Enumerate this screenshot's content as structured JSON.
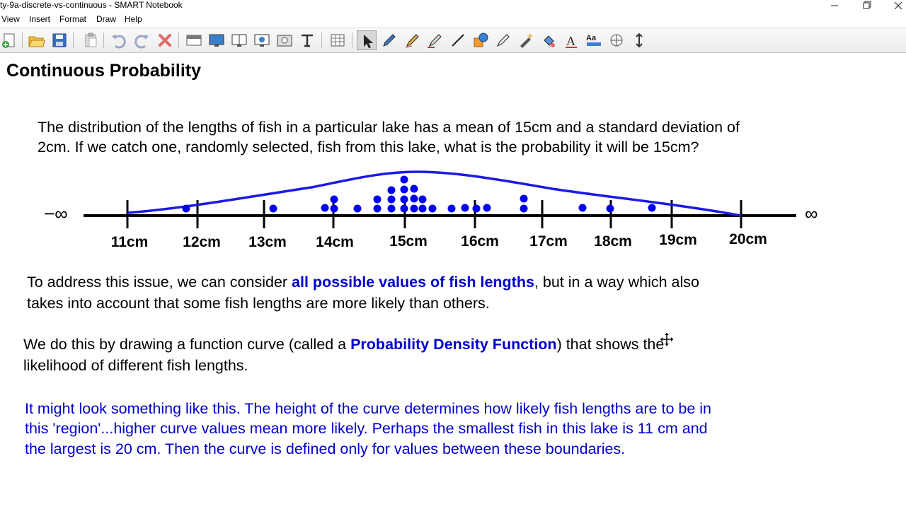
{
  "window": {
    "title": "ty-9a-discrete-vs-continuous - SMART Notebook",
    "minimize_icon": "minimize-icon",
    "restore_icon": "restore-icon",
    "close_icon": "close-icon"
  },
  "menu": [
    "View",
    "Insert",
    "Format",
    "Draw",
    "Help"
  ],
  "toolbar": {
    "buttons": [
      "new-page-icon",
      "open-folder-icon",
      "save-icon",
      "paste-icon",
      "undo-icon",
      "redo-icon",
      "delete-icon",
      "screen-shade-icon",
      "full-screen-icon",
      "dual-page-icon",
      "capture-icon",
      "insert-media-icon",
      "text-tool-icon",
      "table-icon",
      "select-arrow-icon",
      "pen-icon",
      "creative-pen-icon",
      "highlighter-icon",
      "eraser-icon",
      "line-icon",
      "shapes-icon",
      "magic-pen-icon",
      "magic-wand-icon",
      "fill-icon",
      "text-icon",
      "properties-icon",
      "measurement-icon",
      "move-toolbar-icon"
    ]
  },
  "page": {
    "title": "Continuous Probability",
    "question_line1": "The distribution of the lengths of fish in a particular lake has a mean of 15cm and a standard deviation of",
    "question_line2": "2cm.  If we catch one, randomly selected, fish from this lake, what is the probability it will be 15cm?",
    "diagram": {
      "neg_inf": "−∞",
      "pos_inf": "∞",
      "ticks": [
        "11cm",
        "12cm",
        "13cm",
        "14cm",
        "15cm",
        "16cm",
        "17cm",
        "18cm",
        "19cm",
        "20cm"
      ]
    },
    "para1_a": "To address this issue, we can consider ",
    "para1_b": "all possible values of fish lengths",
    "para1_c": ", but in a way which also",
    "para1_line2": "takes into account that some fish lengths are more likely than others.",
    "para2_a": "We do this by drawing a function curve (called a ",
    "para2_b": "Probability Density Function",
    "para2_c": ") that shows the",
    "para2_line2": "likelihood of different fish lengths.",
    "para3_line1": "It might look something like this.  The height of the curve determines how likely fish lengths are to be in",
    "para3_line2": "this 'region'...higher curve values mean more likely.  Perhaps the smallest fish in this lake is 11 cm and",
    "para3_line3": "the largest is 20 cm.  Then the curve is defined only for values between these boundaries."
  },
  "colors": {
    "accent_blue": "#0000cc",
    "curve_blue": "#1a1ae6",
    "dot_blue": "#0000ee"
  }
}
